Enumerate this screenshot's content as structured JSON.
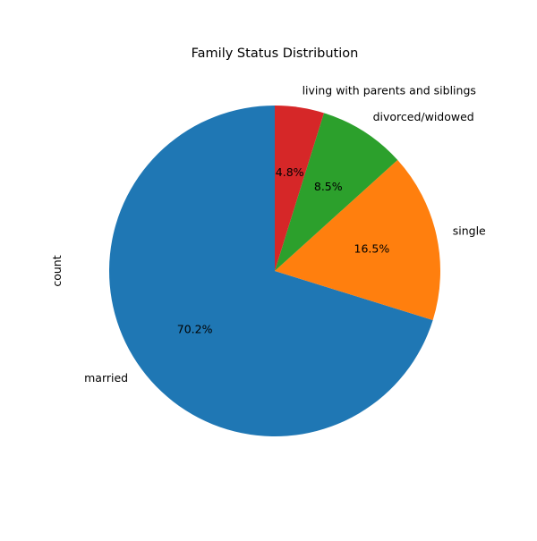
{
  "chart_data": {
    "type": "pie",
    "title": "Family Status Distribution",
    "ylabel": "count",
    "categories": [
      "married",
      "single",
      "divorced/widowed",
      "living with parents and siblings"
    ],
    "values": [
      70.2,
      16.5,
      8.5,
      4.8
    ],
    "labels_pct": [
      "70.2%",
      "16.5%",
      "8.5%",
      "4.8%"
    ],
    "colors": [
      "#1f77b4",
      "#ff7f0e",
      "#2ca02c",
      "#d62728"
    ],
    "start_angle_deg": 90,
    "direction": "counterclockwise"
  }
}
